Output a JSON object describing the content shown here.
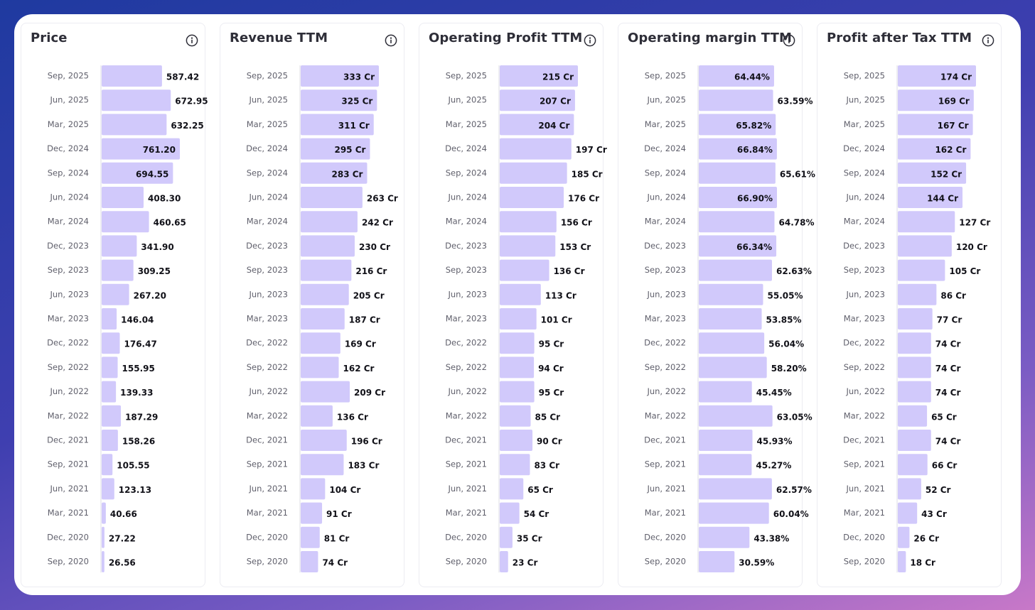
{
  "colors": {
    "bar": "#d1c9fb",
    "bar_edge": "#bdb2f6",
    "axis": "#dcdce4"
  },
  "chart_data": [
    {
      "type": "bar",
      "title": "Price",
      "categories": [
        "Sep, 2025",
        "Jun, 2025",
        "Mar, 2025",
        "Dec, 2024",
        "Sep, 2024",
        "Jun, 2024",
        "Mar, 2024",
        "Dec, 2023",
        "Sep, 2023",
        "Jun, 2023",
        "Mar, 2023",
        "Dec, 2022",
        "Sep, 2022",
        "Jun, 2022",
        "Mar, 2022",
        "Dec, 2021",
        "Sep, 2021",
        "Jun, 2021",
        "Mar, 2021",
        "Dec, 2020",
        "Sep, 2020"
      ],
      "values": [
        587.42,
        672.95,
        632.25,
        761.2,
        694.55,
        408.3,
        460.65,
        341.9,
        309.25,
        267.2,
        146.04,
        176.47,
        155.95,
        139.33,
        187.29,
        158.26,
        105.55,
        123.13,
        40.66,
        27.22,
        26.56
      ],
      "labels": [
        "587.42",
        "672.95",
        "632.25",
        "761.20",
        "694.55",
        "408.30",
        "460.65",
        "341.90",
        "309.25",
        "267.20",
        "146.04",
        "176.47",
        "155.95",
        "139.33",
        "187.29",
        "158.26",
        "105.55",
        "123.13",
        "40.66",
        "27.22",
        "26.56"
      ],
      "inside": [
        false,
        false,
        false,
        true,
        true,
        false,
        false,
        false,
        false,
        false,
        false,
        false,
        false,
        false,
        false,
        false,
        false,
        false,
        false,
        false,
        false
      ],
      "xlim": [
        0,
        761.2
      ]
    },
    {
      "type": "bar",
      "title": "Revenue TTM",
      "categories": [
        "Sep, 2025",
        "Jun, 2025",
        "Mar, 2025",
        "Dec, 2024",
        "Sep, 2024",
        "Jun, 2024",
        "Mar, 2024",
        "Dec, 2023",
        "Sep, 2023",
        "Jun, 2023",
        "Mar, 2023",
        "Dec, 2022",
        "Sep, 2022",
        "Jun, 2022",
        "Mar, 2022",
        "Dec, 2021",
        "Sep, 2021",
        "Jun, 2021",
        "Mar, 2021",
        "Dec, 2020",
        "Sep, 2020"
      ],
      "values": [
        333,
        325,
        311,
        295,
        283,
        263,
        242,
        230,
        216,
        205,
        187,
        169,
        162,
        209,
        136,
        196,
        183,
        104,
        91,
        81,
        74
      ],
      "labels": [
        "333 Cr",
        "325 Cr",
        "311 Cr",
        "295 Cr",
        "283 Cr",
        "263 Cr",
        "242 Cr",
        "230 Cr",
        "216 Cr",
        "205 Cr",
        "187 Cr",
        "169 Cr",
        "162 Cr",
        "209 Cr",
        "136 Cr",
        "196 Cr",
        "183 Cr",
        "104 Cr",
        "91 Cr",
        "81 Cr",
        "74 Cr"
      ],
      "inside": [
        true,
        true,
        true,
        true,
        true,
        false,
        false,
        false,
        false,
        false,
        false,
        false,
        false,
        false,
        false,
        false,
        false,
        false,
        false,
        false,
        false
      ],
      "xlim": [
        0,
        333
      ]
    },
    {
      "type": "bar",
      "title": "Operating Profit TTM",
      "categories": [
        "Sep, 2025",
        "Jun, 2025",
        "Mar, 2025",
        "Dec, 2024",
        "Sep, 2024",
        "Jun, 2024",
        "Mar, 2024",
        "Dec, 2023",
        "Sep, 2023",
        "Jun, 2023",
        "Mar, 2023",
        "Dec, 2022",
        "Sep, 2022",
        "Jun, 2022",
        "Mar, 2022",
        "Dec, 2021",
        "Sep, 2021",
        "Jun, 2021",
        "Mar, 2021",
        "Dec, 2020",
        "Sep, 2020"
      ],
      "values": [
        215,
        207,
        204,
        197,
        185,
        176,
        156,
        153,
        136,
        113,
        101,
        95,
        94,
        95,
        85,
        90,
        83,
        65,
        54,
        35,
        23
      ],
      "labels": [
        "215 Cr",
        "207 Cr",
        "204 Cr",
        "197 Cr",
        "185 Cr",
        "176 Cr",
        "156 Cr",
        "153 Cr",
        "136 Cr",
        "113 Cr",
        "101 Cr",
        "95 Cr",
        "94 Cr",
        "95 Cr",
        "85 Cr",
        "90 Cr",
        "83 Cr",
        "65 Cr",
        "54 Cr",
        "35 Cr",
        "23 Cr"
      ],
      "inside": [
        true,
        true,
        true,
        false,
        false,
        false,
        false,
        false,
        false,
        false,
        false,
        false,
        false,
        false,
        false,
        false,
        false,
        false,
        false,
        false,
        false
      ],
      "xlim": [
        0,
        215
      ]
    },
    {
      "type": "bar",
      "title": "Operating margin TTM",
      "categories": [
        "Sep, 2025",
        "Jun, 2025",
        "Mar, 2025",
        "Dec, 2024",
        "Sep, 2024",
        "Jun, 2024",
        "Mar, 2024",
        "Dec, 2023",
        "Sep, 2023",
        "Jun, 2023",
        "Mar, 2023",
        "Dec, 2022",
        "Sep, 2022",
        "Jun, 2022",
        "Mar, 2022",
        "Dec, 2021",
        "Sep, 2021",
        "Jun, 2021",
        "Mar, 2021",
        "Dec, 2020",
        "Sep, 2020"
      ],
      "values": [
        64.44,
        63.59,
        65.82,
        66.84,
        65.61,
        66.9,
        64.78,
        66.34,
        62.63,
        55.05,
        53.85,
        56.04,
        58.2,
        45.45,
        63.05,
        45.93,
        45.27,
        62.57,
        60.04,
        43.38,
        30.59
      ],
      "labels": [
        "64.44%",
        "63.59%",
        "65.82%",
        "66.84%",
        "65.61%",
        "66.90%",
        "64.78%",
        "66.34%",
        "62.63%",
        "55.05%",
        "53.85%",
        "56.04%",
        "58.20%",
        "45.45%",
        "63.05%",
        "45.93%",
        "45.27%",
        "62.57%",
        "60.04%",
        "43.38%",
        "30.59%"
      ],
      "inside": [
        true,
        false,
        true,
        true,
        false,
        true,
        false,
        true,
        false,
        false,
        false,
        false,
        false,
        false,
        false,
        false,
        false,
        false,
        false,
        false,
        false
      ],
      "xlim": [
        0,
        66.9
      ]
    },
    {
      "type": "bar",
      "title": "Profit after Tax TTM",
      "categories": [
        "Sep, 2025",
        "Jun, 2025",
        "Mar, 2025",
        "Dec, 2024",
        "Sep, 2024",
        "Jun, 2024",
        "Mar, 2024",
        "Dec, 2023",
        "Sep, 2023",
        "Jun, 2023",
        "Mar, 2023",
        "Dec, 2022",
        "Sep, 2022",
        "Jun, 2022",
        "Mar, 2022",
        "Dec, 2021",
        "Sep, 2021",
        "Jun, 2021",
        "Mar, 2021",
        "Dec, 2020",
        "Sep, 2020"
      ],
      "values": [
        174,
        169,
        167,
        162,
        152,
        144,
        127,
        120,
        105,
        86,
        77,
        74,
        74,
        74,
        65,
        74,
        66,
        52,
        43,
        26,
        18
      ],
      "labels": [
        "174 Cr",
        "169 Cr",
        "167 Cr",
        "162 Cr",
        "152 Cr",
        "144 Cr",
        "127 Cr",
        "120 Cr",
        "105 Cr",
        "86 Cr",
        "77 Cr",
        "74 Cr",
        "74 Cr",
        "74 Cr",
        "65 Cr",
        "74 Cr",
        "66 Cr",
        "52 Cr",
        "43 Cr",
        "26 Cr",
        "18 Cr"
      ],
      "inside": [
        true,
        true,
        true,
        true,
        true,
        true,
        false,
        false,
        false,
        false,
        false,
        false,
        false,
        false,
        false,
        false,
        false,
        false,
        false,
        false,
        false
      ],
      "xlim": [
        0,
        174
      ]
    }
  ]
}
